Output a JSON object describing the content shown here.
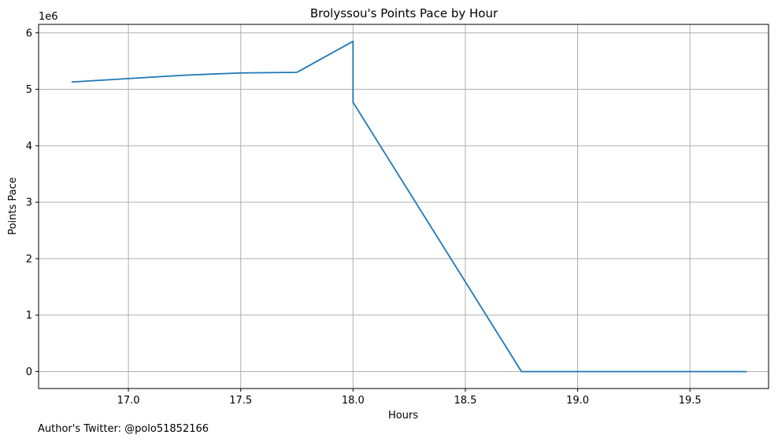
{
  "chart_data": {
    "type": "line",
    "title": "Brolyssou's Points Pace by Hour",
    "xlabel": "Hours",
    "ylabel": "Points Pace",
    "offset_text": "1e6",
    "xlim": [
      16.6,
      19.85
    ],
    "ylim": [
      -0.3,
      6.15
    ],
    "y_scale_note": "values in millions (×1e6)",
    "x_ticks": [
      17.0,
      17.5,
      18.0,
      18.5,
      19.0,
      19.5
    ],
    "x_tick_labels": [
      "17.0",
      "17.5",
      "18.0",
      "18.5",
      "19.0",
      "19.5"
    ],
    "y_ticks": [
      0,
      1,
      2,
      3,
      4,
      5,
      6
    ],
    "y_tick_labels": [
      "0",
      "1",
      "2",
      "3",
      "4",
      "5",
      "6"
    ],
    "grid": true,
    "legend": "none",
    "series": [
      {
        "color": "#1f77b4",
        "x": [
          16.75,
          17.0,
          17.25,
          17.5,
          17.75,
          18.0,
          18.0,
          18.75,
          19.0,
          19.25,
          19.5,
          19.75
        ],
        "y": [
          5.13,
          5.19,
          5.25,
          5.29,
          5.3,
          5.85,
          4.77,
          0.0,
          0.0,
          0.0,
          0.0,
          0.0
        ]
      }
    ]
  },
  "footer": {
    "text": "Author's Twitter: @polo51852166"
  }
}
